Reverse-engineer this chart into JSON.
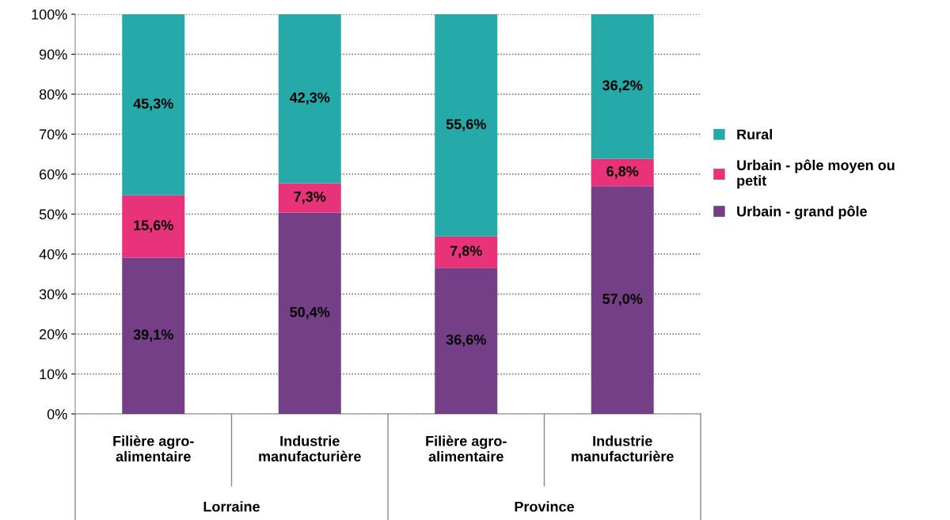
{
  "chart_data": {
    "type": "bar",
    "stacked": true,
    "categories": [
      "Filière agro-\nalimentaire",
      "Industrie\nmanufacturière",
      "Filière agro-\nalimentaire",
      "Industrie\nmanufacturière"
    ],
    "series": [
      {
        "name": "Urbain - grand pôle",
        "color": "#743f87",
        "values": [
          39.1,
          50.4,
          36.6,
          57.0
        ],
        "value_labels": [
          "39,1%",
          "50,4%",
          "36,6%",
          "57,0%"
        ]
      },
      {
        "name": "Urbain - pôle moyen ou\npetit",
        "color": "#e8337a",
        "values": [
          15.6,
          7.3,
          7.8,
          6.8
        ],
        "value_labels": [
          "15,6%",
          "7,3%",
          "7,8%",
          "6,8%"
        ]
      },
      {
        "name": "Rural",
        "color": "#26a9a9",
        "values": [
          45.3,
          42.3,
          55.6,
          36.2
        ],
        "value_labels": [
          "45,3%",
          "42,3%",
          "55,6%",
          "36,2%"
        ]
      }
    ],
    "ylim": [
      0,
      100
    ],
    "yticks": [
      {
        "value": 0,
        "label": "0%"
      },
      {
        "value": 10,
        "label": "10%"
      },
      {
        "value": 20,
        "label": "20%"
      },
      {
        "value": 30,
        "label": "30%"
      },
      {
        "value": 40,
        "label": "40%"
      },
      {
        "value": 50,
        "label": "50%"
      },
      {
        "value": 60,
        "label": "60%"
      },
      {
        "value": 70,
        "label": "70%"
      },
      {
        "value": 80,
        "label": "80%"
      },
      {
        "value": 90,
        "label": "90%"
      },
      {
        "value": 100,
        "label": "100%"
      }
    ],
    "annotations": [
      "Lorraine",
      "Province"
    ],
    "grid": "y",
    "legend": "right"
  }
}
